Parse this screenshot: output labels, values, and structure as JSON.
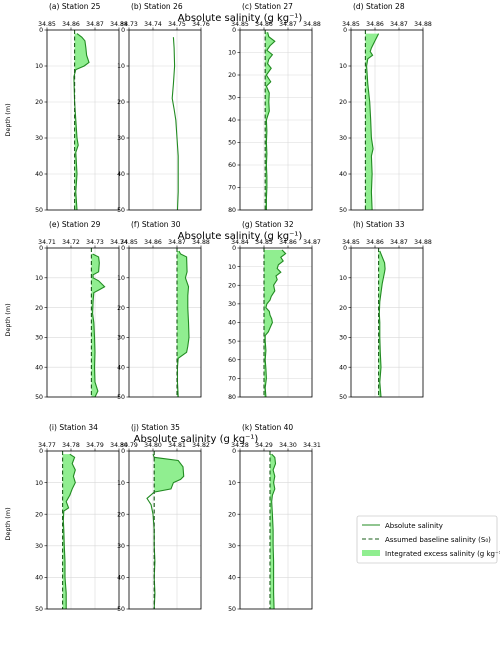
{
  "row_titles": [
    "Absolute salinity (g kg⁻¹)",
    "Absolute salinity (g kg⁻¹)",
    "Absolute salinity (g kg⁻¹)"
  ],
  "ylabel": "Depth (m)",
  "legend": {
    "placement": "lower-right",
    "entries": [
      "Absolute salinity",
      "Assumed baseline salinity (S₀)",
      "Integrated excess salinity (g kg⁻¹)"
    ],
    "colors": {
      "profile": "#228b22",
      "baseline": "#1a5c1a",
      "fill": "#90ee90"
    }
  },
  "chart_data": [
    {
      "type": "line",
      "title": "(a)  Station 25",
      "xlim": [
        34.85,
        34.88
      ],
      "xticks": [
        "34.85",
        "34.86",
        "34.87",
        "34.88"
      ],
      "ylim": [
        0,
        50
      ],
      "yticks": [
        0,
        10,
        20,
        30,
        40,
        50
      ],
      "baseline": 34.8615,
      "profile": [
        [
          34.8625,
          1
        ],
        [
          34.8645,
          2
        ],
        [
          34.8658,
          3
        ],
        [
          34.8662,
          5
        ],
        [
          34.8665,
          7
        ],
        [
          34.8675,
          9
        ],
        [
          34.8655,
          10
        ],
        [
          34.862,
          11
        ],
        [
          34.8612,
          13
        ],
        [
          34.8615,
          20
        ],
        [
          34.862,
          25
        ],
        [
          34.8625,
          30
        ],
        [
          34.863,
          32
        ],
        [
          34.862,
          34
        ],
        [
          34.8625,
          40
        ],
        [
          34.862,
          45
        ],
        [
          34.8625,
          50
        ]
      ]
    },
    {
      "type": "line",
      "title": "(b)  Station 26",
      "xlim": [
        34.73,
        34.76
      ],
      "xticks": [
        "34.73",
        "34.74",
        "34.75",
        "34.76"
      ],
      "ylim": [
        0,
        50
      ],
      "yticks": [
        0,
        10,
        20,
        30,
        40,
        50
      ],
      "baseline": null,
      "profile": [
        [
          34.7485,
          2
        ],
        [
          34.7488,
          5
        ],
        [
          34.749,
          10
        ],
        [
          34.7485,
          15
        ],
        [
          34.748,
          19
        ],
        [
          34.7488,
          22
        ],
        [
          34.7495,
          25
        ],
        [
          34.75,
          30
        ],
        [
          34.7505,
          35
        ],
        [
          34.7505,
          40
        ],
        [
          34.7505,
          45
        ],
        [
          34.7502,
          50
        ]
      ]
    },
    {
      "type": "line",
      "title": "(c)  Station 27",
      "xlim": [
        34.85,
        34.88
      ],
      "xticks": [
        "34.85",
        "34.86",
        "34.87",
        "34.88"
      ],
      "ylim": [
        0,
        80
      ],
      "yticks": [
        0,
        10,
        20,
        30,
        40,
        50,
        60,
        70,
        80
      ],
      "baseline": 34.8605,
      "profile": [
        [
          34.8615,
          1
        ],
        [
          34.862,
          3
        ],
        [
          34.8645,
          5
        ],
        [
          34.8625,
          7
        ],
        [
          34.8612,
          9
        ],
        [
          34.8635,
          11
        ],
        [
          34.862,
          13
        ],
        [
          34.8615,
          15
        ],
        [
          34.863,
          17
        ],
        [
          34.861,
          20
        ],
        [
          34.8628,
          23
        ],
        [
          34.861,
          25
        ],
        [
          34.8622,
          28
        ],
        [
          34.862,
          32
        ],
        [
          34.8622,
          36
        ],
        [
          34.861,
          40
        ],
        [
          34.8612,
          45
        ],
        [
          34.861,
          50
        ],
        [
          34.8612,
          55
        ],
        [
          34.861,
          60
        ],
        [
          34.8612,
          65
        ],
        [
          34.8612,
          70
        ],
        [
          34.861,
          75
        ],
        [
          34.861,
          80
        ]
      ]
    },
    {
      "type": "line",
      "title": "(d)  Station 28",
      "xlim": [
        34.85,
        34.88
      ],
      "xticks": [
        "34.85",
        "34.86",
        "34.87",
        "34.88"
      ],
      "ylim": [
        0,
        50
      ],
      "yticks": [
        0,
        10,
        20,
        30,
        40,
        50
      ],
      "baseline": 34.856,
      "profile": [
        [
          34.8615,
          1
        ],
        [
          34.86,
          3
        ],
        [
          34.8585,
          5
        ],
        [
          34.858,
          6
        ],
        [
          34.859,
          7
        ],
        [
          34.857,
          8
        ],
        [
          34.8565,
          10
        ],
        [
          34.857,
          15
        ],
        [
          34.8578,
          20
        ],
        [
          34.8582,
          25
        ],
        [
          34.8585,
          30
        ],
        [
          34.8592,
          33
        ],
        [
          34.8585,
          35
        ],
        [
          34.8588,
          40
        ],
        [
          34.8585,
          45
        ],
        [
          34.8588,
          50
        ]
      ]
    },
    {
      "type": "line",
      "title": "(e)  Station 29",
      "xlim": [
        34.71,
        34.74
      ],
      "xticks": [
        "34.71",
        "34.72",
        "34.73",
        "34.74"
      ],
      "ylim": [
        0,
        50
      ],
      "yticks": [
        0,
        10,
        20,
        30,
        40,
        50
      ],
      "baseline": 34.7285,
      "profile": [
        [
          34.729,
          2
        ],
        [
          34.7315,
          3
        ],
        [
          34.7318,
          5
        ],
        [
          34.7315,
          8
        ],
        [
          34.7292,
          9
        ],
        [
          34.7292,
          10
        ],
        [
          34.7315,
          11
        ],
        [
          34.734,
          13
        ],
        [
          34.7318,
          14
        ],
        [
          34.7295,
          15
        ],
        [
          34.7292,
          18
        ],
        [
          34.729,
          22
        ],
        [
          34.7295,
          25
        ],
        [
          34.7298,
          30
        ],
        [
          34.73,
          35
        ],
        [
          34.7298,
          40
        ],
        [
          34.73,
          45
        ],
        [
          34.7312,
          48
        ],
        [
          34.73,
          50
        ]
      ]
    },
    {
      "type": "line",
      "title": "(f)  Station 30",
      "xlim": [
        34.85,
        34.88
      ],
      "xticks": [
        "34.85",
        "34.86",
        "34.87",
        "34.88"
      ],
      "ylim": [
        0,
        50
      ],
      "yticks": [
        0,
        10,
        20,
        30,
        40,
        50
      ],
      "baseline": 34.87,
      "profile": [
        [
          34.8708,
          1
        ],
        [
          34.8715,
          2
        ],
        [
          34.874,
          3
        ],
        [
          34.8742,
          8
        ],
        [
          34.8735,
          10
        ],
        [
          34.8748,
          13
        ],
        [
          34.8745,
          16
        ],
        [
          34.8745,
          20
        ],
        [
          34.8748,
          25
        ],
        [
          34.875,
          30
        ],
        [
          34.8745,
          33
        ],
        [
          34.874,
          35
        ],
        [
          34.8705,
          37
        ],
        [
          34.8702,
          40
        ],
        [
          34.8702,
          45
        ],
        [
          34.8705,
          50
        ]
      ]
    },
    {
      "type": "line",
      "title": "(g)  Station 32",
      "xlim": [
        34.84,
        34.87
      ],
      "xticks": [
        "34.84",
        "34.85",
        "34.86",
        "34.87"
      ],
      "ylim": [
        0,
        80
      ],
      "yticks": [
        0,
        10,
        20,
        30,
        40,
        50,
        60,
        70,
        80
      ],
      "baseline": 34.85,
      "profile": [
        [
          34.8575,
          1
        ],
        [
          34.859,
          3
        ],
        [
          34.857,
          5
        ],
        [
          34.858,
          7
        ],
        [
          34.856,
          9
        ],
        [
          34.8555,
          11
        ],
        [
          34.857,
          13
        ],
        [
          34.855,
          15
        ],
        [
          34.8555,
          17
        ],
        [
          34.854,
          20
        ],
        [
          34.8545,
          23
        ],
        [
          34.853,
          26
        ],
        [
          34.8525,
          28
        ],
        [
          34.8512,
          30
        ],
        [
          34.8508,
          32
        ],
        [
          34.8522,
          34
        ],
        [
          34.8525,
          36
        ],
        [
          34.8532,
          38
        ],
        [
          34.8535,
          40
        ],
        [
          34.8528,
          42
        ],
        [
          34.8518,
          45
        ],
        [
          34.8505,
          47
        ],
        [
          34.8505,
          50
        ],
        [
          34.8508,
          55
        ],
        [
          34.8505,
          60
        ],
        [
          34.8508,
          65
        ],
        [
          34.851,
          70
        ],
        [
          34.8505,
          75
        ],
        [
          34.8508,
          80
        ]
      ]
    },
    {
      "type": "line",
      "title": "(h)  Station 33",
      "xlim": [
        34.85,
        34.88
      ],
      "xticks": [
        "34.85",
        "34.86",
        "34.87",
        "34.88"
      ],
      "ylim": [
        0,
        50
      ],
      "yticks": [
        0,
        10,
        20,
        30,
        40,
        50
      ],
      "baseline": 34.8615,
      "profile": [
        [
          34.862,
          1
        ],
        [
          34.863,
          3
        ],
        [
          34.864,
          5
        ],
        [
          34.8642,
          7
        ],
        [
          34.864,
          8
        ],
        [
          34.8635,
          10
        ],
        [
          34.863,
          12
        ],
        [
          34.8625,
          15
        ],
        [
          34.862,
          18
        ],
        [
          34.8618,
          22
        ],
        [
          34.862,
          25
        ],
        [
          34.862,
          30
        ],
        [
          34.8622,
          35
        ],
        [
          34.8625,
          40
        ],
        [
          34.862,
          45
        ],
        [
          34.8625,
          50
        ]
      ]
    },
    {
      "type": "line",
      "title": "(i)  Station 34",
      "xlim": [
        34.77,
        34.8
      ],
      "xticks": [
        "34.77",
        "34.78",
        "34.79",
        "34.80"
      ],
      "ylim": [
        0,
        50
      ],
      "yticks": [
        0,
        10,
        20,
        30,
        40,
        50
      ],
      "baseline": 34.7765,
      "profile": [
        [
          34.7795,
          1
        ],
        [
          34.7815,
          2
        ],
        [
          34.7805,
          4
        ],
        [
          34.7818,
          6
        ],
        [
          34.781,
          8
        ],
        [
          34.7818,
          10
        ],
        [
          34.7805,
          12
        ],
        [
          34.7795,
          14
        ],
        [
          34.778,
          16
        ],
        [
          34.779,
          18
        ],
        [
          34.777,
          19
        ],
        [
          34.7768,
          22
        ],
        [
          34.777,
          25
        ],
        [
          34.7772,
          30
        ],
        [
          34.7775,
          35
        ],
        [
          34.7775,
          40
        ],
        [
          34.778,
          45
        ],
        [
          34.778,
          50
        ]
      ]
    },
    {
      "type": "line",
      "title": "(j)  Station 35",
      "xlim": [
        34.79,
        34.82
      ],
      "xticks": [
        "34.79",
        "34.80",
        "34.81",
        "34.82"
      ],
      "ylim": [
        0,
        50
      ],
      "yticks": [
        0,
        10,
        20,
        30,
        40,
        50
      ],
      "baseline": 34.8005,
      "profile": [
        [
          34.8,
          1
        ],
        [
          34.8005,
          2
        ],
        [
          34.8105,
          3
        ],
        [
          34.8125,
          5
        ],
        [
          34.8128,
          8
        ],
        [
          34.8115,
          9
        ],
        [
          34.8085,
          10
        ],
        [
          34.8075,
          12
        ],
        [
          34.8005,
          13
        ],
        [
          34.7975,
          15
        ],
        [
          34.7992,
          17
        ],
        [
          34.8,
          20
        ],
        [
          34.8005,
          25
        ],
        [
          34.8005,
          30
        ],
        [
          34.8008,
          35
        ],
        [
          34.8005,
          40
        ],
        [
          34.8008,
          45
        ],
        [
          34.8005,
          50
        ]
      ]
    },
    {
      "type": "line",
      "title": "(k)  Station 40",
      "xlim": [
        34.28,
        34.31
      ],
      "xticks": [
        "34.28",
        "34.29",
        "34.30",
        "34.31"
      ],
      "ylim": [
        0,
        50
      ],
      "yticks": [
        0,
        10,
        20,
        30,
        40,
        50
      ],
      "baseline": 34.2925,
      "profile": [
        [
          34.2932,
          1
        ],
        [
          34.2945,
          2
        ],
        [
          34.2948,
          4
        ],
        [
          34.2938,
          6
        ],
        [
          34.2945,
          8
        ],
        [
          34.294,
          10
        ],
        [
          34.2945,
          12
        ],
        [
          34.2935,
          14
        ],
        [
          34.2932,
          16
        ],
        [
          34.2935,
          20
        ],
        [
          34.2938,
          25
        ],
        [
          34.2938,
          30
        ],
        [
          34.294,
          35
        ],
        [
          34.294,
          40
        ],
        [
          34.294,
          45
        ],
        [
          34.2942,
          50
        ]
      ]
    }
  ]
}
